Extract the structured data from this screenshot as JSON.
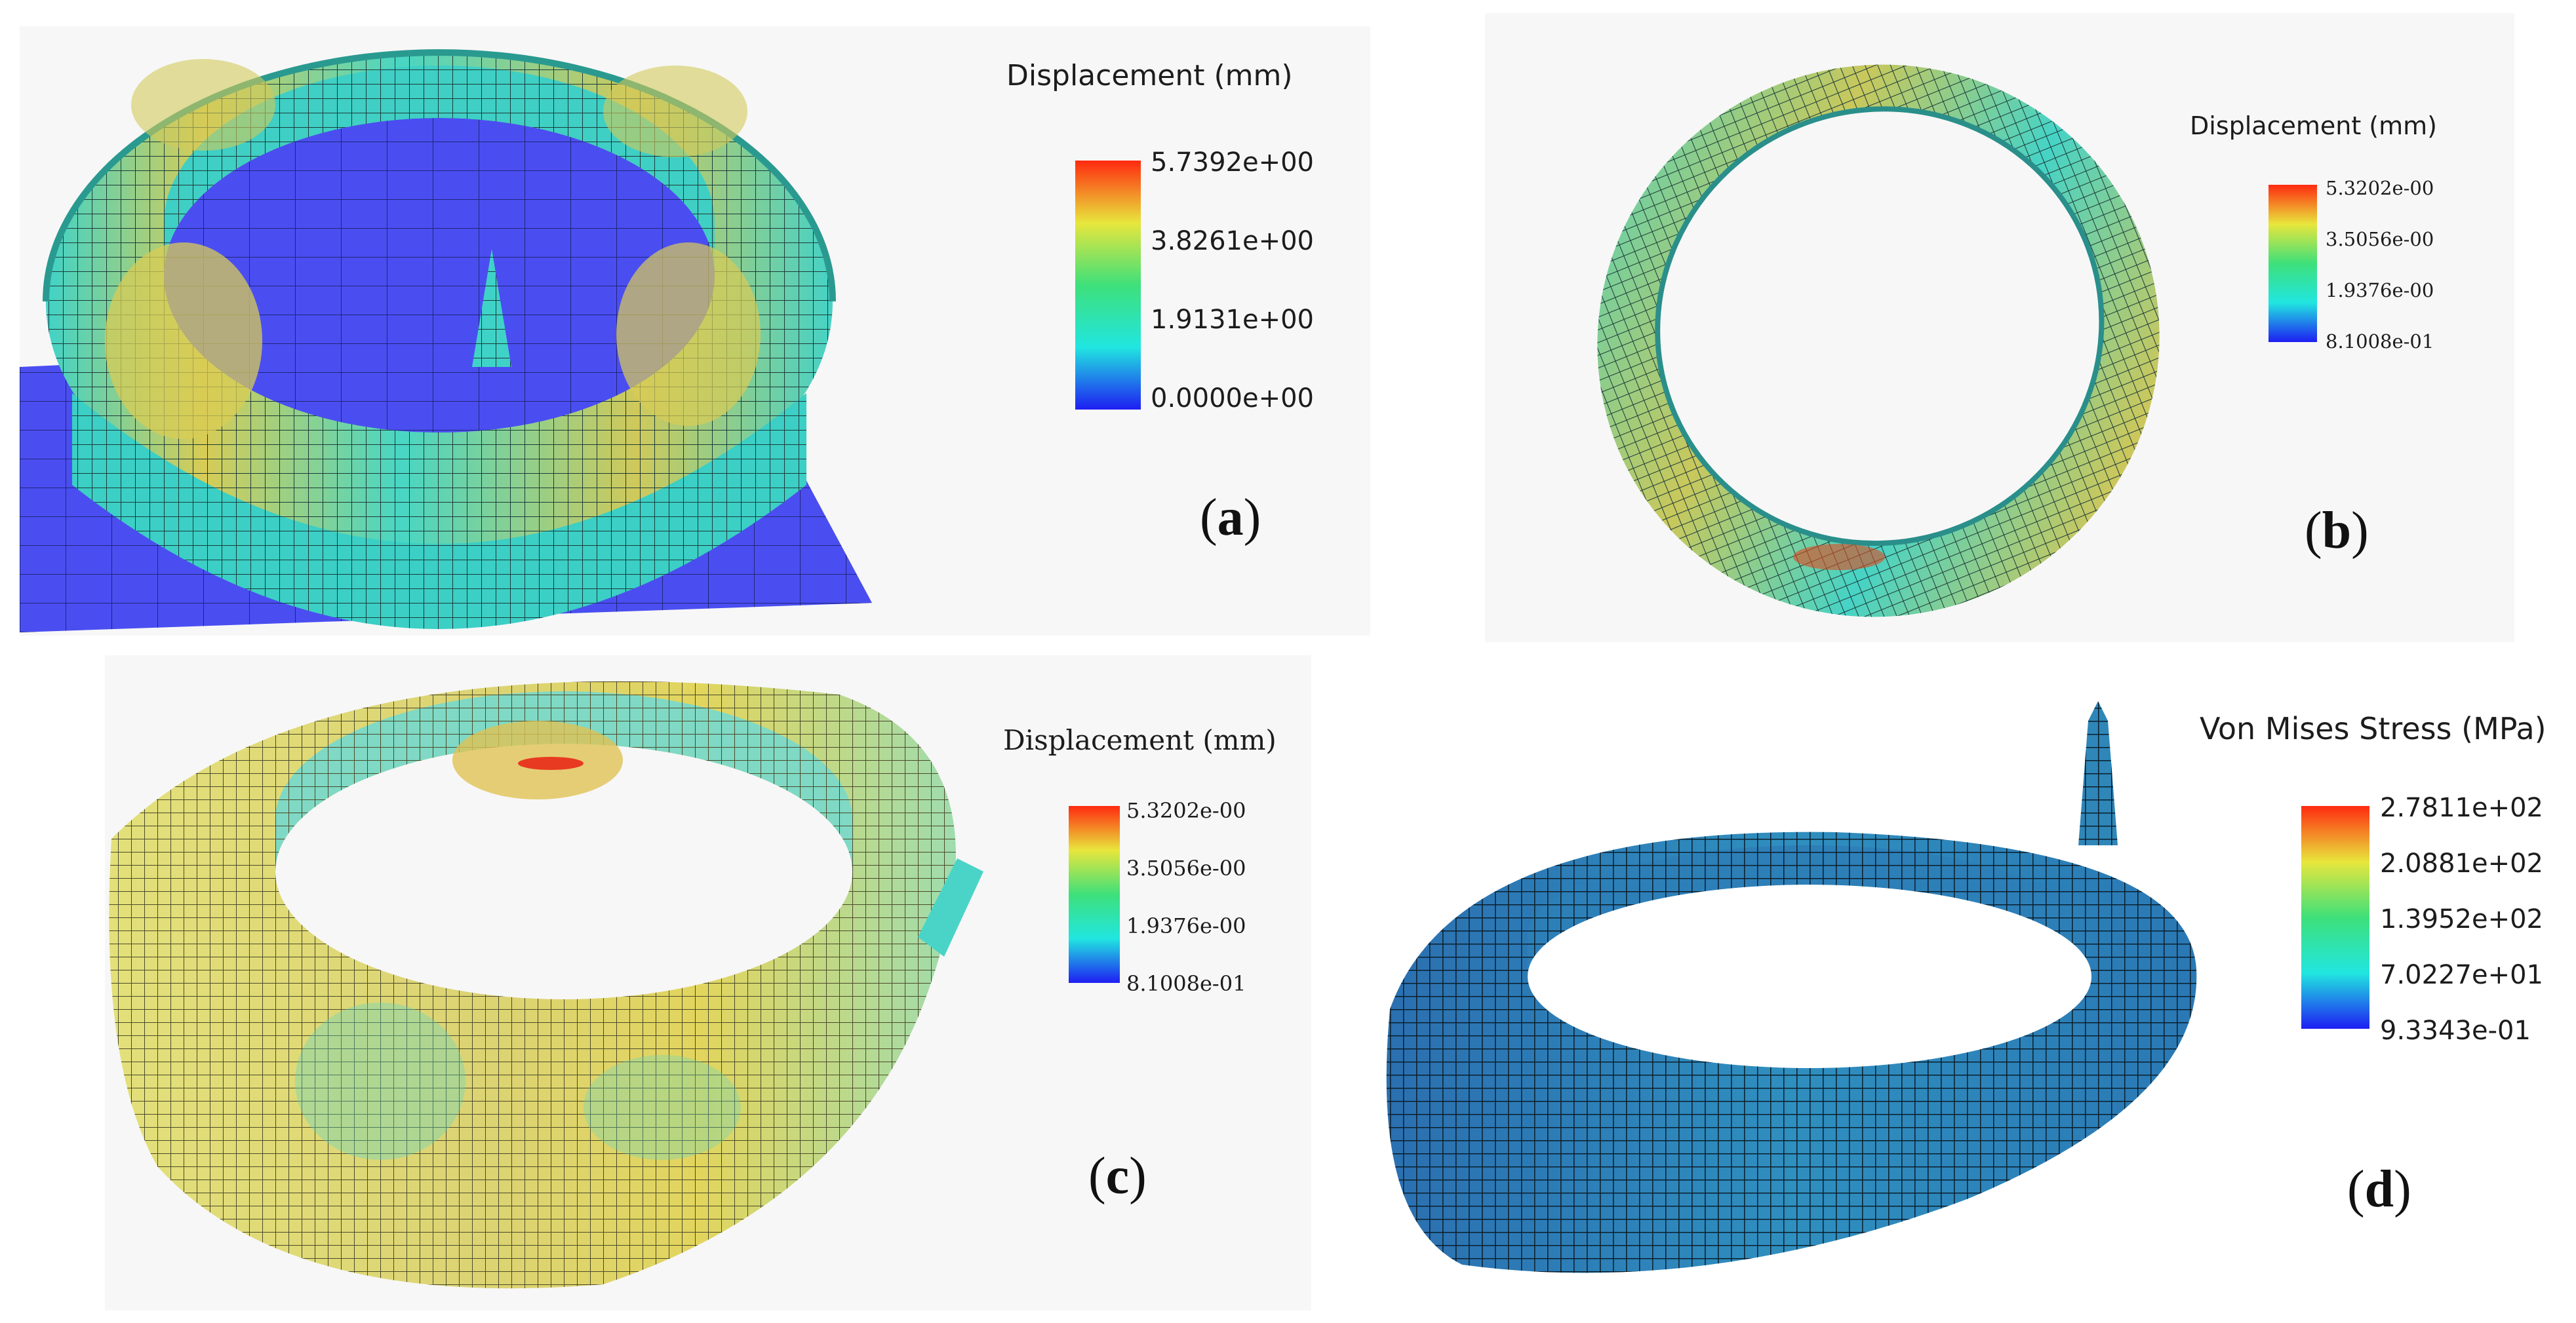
{
  "panels": [
    {
      "id": "a",
      "label": "a",
      "legend_title": "Displacement (mm)",
      "ticks": [
        "5.7392e+00",
        "3.8261e+00",
        "1.9131e+00",
        "0.0000e+00"
      ]
    },
    {
      "id": "b",
      "label": "b",
      "legend_title": "Displacement (mm)",
      "ticks": [
        "5.3202e-00",
        "3.5056e-00",
        "1.9376e-00",
        "8.1008e-01"
      ]
    },
    {
      "id": "c",
      "label": "c",
      "legend_title": "Displacement (mm)",
      "ticks": [
        "5.3202e-00",
        "3.5056e-00",
        "1.9376e-00",
        "8.1008e-01"
      ]
    },
    {
      "id": "d",
      "label": "d",
      "legend_title": "Von Mises Stress (MPa)",
      "ticks": [
        "2.7811e+02",
        "2.0881e+02",
        "1.3952e+02",
        "7.0227e+01",
        "9.3343e-01"
      ]
    }
  ],
  "colors": {
    "scale_red": "#ff2a10",
    "scale_yellow": "#e8e63c",
    "scale_green": "#3ee07a",
    "scale_cyan": "#21e6e0",
    "scale_blue": "#1e1ef2",
    "mesh_cyan": "#3fd3c8",
    "mesh_yellow": "#d6c85a",
    "base_blue": "#4a4ef0",
    "dark_blue": "#2f86b8"
  }
}
